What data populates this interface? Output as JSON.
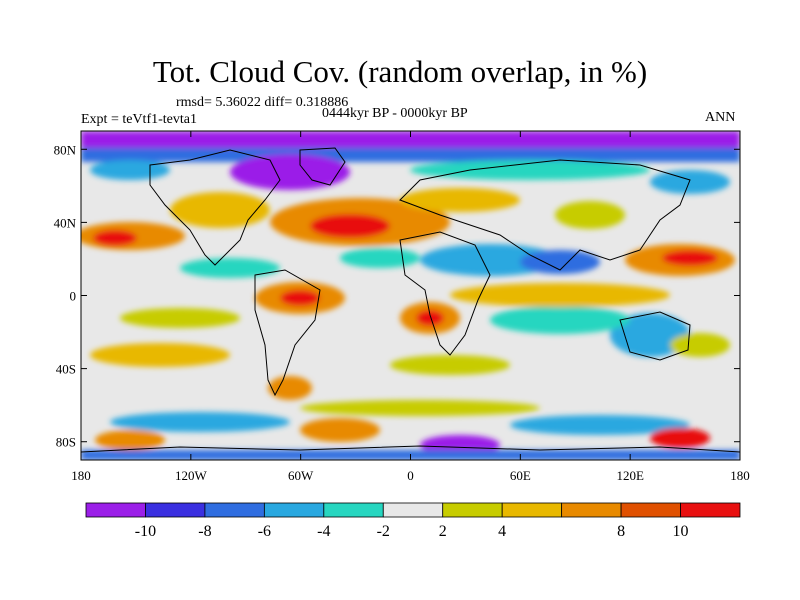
{
  "title": "Tot. Cloud Cov. (random overlap, in %)",
  "stats": "rmsd= 5.36022 diff= 0.318886",
  "experiment": "Expt = teVtf1-tevta1",
  "period": "0444kyr BP - 0000kyr BP",
  "season": "ANN",
  "map": {
    "lon_range": [
      -180,
      180
    ],
    "lat_range": [
      -90,
      90
    ],
    "lon_ticks": [
      {
        "value": -180,
        "label": "180"
      },
      {
        "value": -120,
        "label": "120W"
      },
      {
        "value": -60,
        "label": "60W"
      },
      {
        "value": 0,
        "label": "0"
      },
      {
        "value": 60,
        "label": "60E"
      },
      {
        "value": 120,
        "label": "120E"
      },
      {
        "value": 180,
        "label": "180"
      }
    ],
    "lat_ticks": [
      {
        "value": 80,
        "label": "80N"
      },
      {
        "value": 40,
        "label": "40N"
      },
      {
        "value": 0,
        "label": "0"
      },
      {
        "value": -40,
        "label": "40S"
      },
      {
        "value": -80,
        "label": "80S"
      }
    ],
    "background_color": "#e8e8e8"
  },
  "colorbar": {
    "colors": [
      "#9b1fe8",
      "#3a2fe0",
      "#2f6de0",
      "#29a8e0",
      "#27d6c0",
      "#e8e8e8",
      "#c7cc00",
      "#e8b800",
      "#e88a00",
      "#e05000",
      "#e81010"
    ],
    "labels": [
      "-10",
      "-8",
      "-6",
      "-4",
      "-2",
      "2",
      "4",
      "8",
      "10"
    ]
  }
}
